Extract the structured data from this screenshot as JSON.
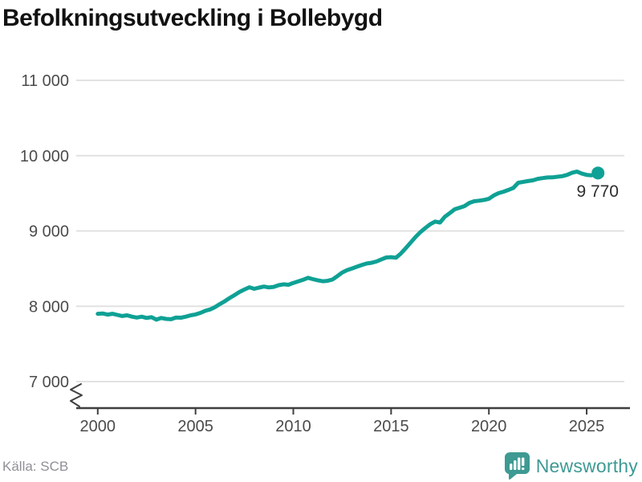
{
  "header": {
    "title": "Befolkningsutveckling i Bollebygd"
  },
  "chart_data": {
    "type": "line",
    "title": "Befolkningsutveckling i Bollebygd",
    "xlabel": "",
    "ylabel": "",
    "ylim": [
      7000,
      11000
    ],
    "xlim": [
      1998.9,
      2027.2
    ],
    "grid": "horizontal",
    "legend": "none",
    "axis_break_bottom_left": true,
    "line_color": "#0FA195",
    "grid_color": "#E2E2E2",
    "axis_color": "#3F3F3F",
    "tick_label_color": "#4B4B4B",
    "yticks": [
      {
        "value": 7000,
        "label": "7 000"
      },
      {
        "value": 8000,
        "label": "8 000"
      },
      {
        "value": 9000,
        "label": "9 000"
      },
      {
        "value": 10000,
        "label": "10 000"
      },
      {
        "value": 11000,
        "label": "11 000"
      }
    ],
    "xticks": [
      {
        "value": 2000,
        "label": "2000"
      },
      {
        "value": 2005,
        "label": "2005"
      },
      {
        "value": 2010,
        "label": "2010"
      },
      {
        "value": 2015,
        "label": "2015"
      },
      {
        "value": 2020,
        "label": "2020"
      },
      {
        "value": 2025,
        "label": "2025"
      }
    ],
    "end_label": "9 770",
    "end_point": [
      2025.58,
      9770
    ],
    "series": [
      {
        "name": "Befolkning i Bollebygd",
        "points": [
          [
            2000.0,
            7900
          ],
          [
            2000.25,
            7905
          ],
          [
            2000.5,
            7890
          ],
          [
            2000.75,
            7900
          ],
          [
            2001.0,
            7885
          ],
          [
            2001.25,
            7870
          ],
          [
            2001.5,
            7880
          ],
          [
            2001.75,
            7862
          ],
          [
            2002.0,
            7850
          ],
          [
            2002.25,
            7862
          ],
          [
            2002.5,
            7845
          ],
          [
            2002.75,
            7855
          ],
          [
            2003.0,
            7822
          ],
          [
            2003.25,
            7845
          ],
          [
            2003.5,
            7832
          ],
          [
            2003.75,
            7828
          ],
          [
            2004.0,
            7850
          ],
          [
            2004.25,
            7848
          ],
          [
            2004.5,
            7862
          ],
          [
            2004.75,
            7880
          ],
          [
            2005.0,
            7892
          ],
          [
            2005.25,
            7912
          ],
          [
            2005.5,
            7940
          ],
          [
            2005.75,
            7958
          ],
          [
            2006.0,
            7990
          ],
          [
            2006.25,
            8030
          ],
          [
            2006.5,
            8068
          ],
          [
            2006.75,
            8110
          ],
          [
            2007.0,
            8150
          ],
          [
            2007.25,
            8190
          ],
          [
            2007.5,
            8222
          ],
          [
            2007.75,
            8252
          ],
          [
            2008.0,
            8232
          ],
          [
            2008.25,
            8248
          ],
          [
            2008.5,
            8262
          ],
          [
            2008.75,
            8250
          ],
          [
            2009.0,
            8258
          ],
          [
            2009.25,
            8280
          ],
          [
            2009.5,
            8292
          ],
          [
            2009.75,
            8285
          ],
          [
            2010.0,
            8310
          ],
          [
            2010.25,
            8330
          ],
          [
            2010.5,
            8352
          ],
          [
            2010.75,
            8378
          ],
          [
            2011.0,
            8360
          ],
          [
            2011.25,
            8345
          ],
          [
            2011.5,
            8332
          ],
          [
            2011.75,
            8338
          ],
          [
            2012.0,
            8355
          ],
          [
            2012.25,
            8400
          ],
          [
            2012.5,
            8448
          ],
          [
            2012.75,
            8480
          ],
          [
            2013.0,
            8502
          ],
          [
            2013.25,
            8525
          ],
          [
            2013.5,
            8548
          ],
          [
            2013.75,
            8568
          ],
          [
            2014.0,
            8578
          ],
          [
            2014.25,
            8595
          ],
          [
            2014.5,
            8622
          ],
          [
            2014.75,
            8648
          ],
          [
            2015.0,
            8652
          ],
          [
            2015.25,
            8645
          ],
          [
            2015.5,
            8700
          ],
          [
            2015.75,
            8772
          ],
          [
            2016.0,
            8845
          ],
          [
            2016.25,
            8920
          ],
          [
            2016.5,
            8985
          ],
          [
            2016.75,
            9040
          ],
          [
            2017.0,
            9090
          ],
          [
            2017.25,
            9125
          ],
          [
            2017.5,
            9112
          ],
          [
            2017.75,
            9190
          ],
          [
            2018.0,
            9238
          ],
          [
            2018.25,
            9288
          ],
          [
            2018.5,
            9308
          ],
          [
            2018.75,
            9330
          ],
          [
            2019.0,
            9372
          ],
          [
            2019.25,
            9395
          ],
          [
            2019.5,
            9402
          ],
          [
            2019.75,
            9412
          ],
          [
            2020.0,
            9428
          ],
          [
            2020.25,
            9472
          ],
          [
            2020.5,
            9502
          ],
          [
            2020.75,
            9522
          ],
          [
            2021.0,
            9545
          ],
          [
            2021.25,
            9572
          ],
          [
            2021.5,
            9640
          ],
          [
            2021.75,
            9652
          ],
          [
            2022.0,
            9662
          ],
          [
            2022.25,
            9672
          ],
          [
            2022.5,
            9692
          ],
          [
            2022.75,
            9702
          ],
          [
            2023.0,
            9710
          ],
          [
            2023.25,
            9712
          ],
          [
            2023.5,
            9720
          ],
          [
            2023.75,
            9728
          ],
          [
            2024.0,
            9745
          ],
          [
            2024.25,
            9772
          ],
          [
            2024.5,
            9788
          ],
          [
            2024.75,
            9762
          ],
          [
            2025.0,
            9745
          ],
          [
            2025.25,
            9738
          ],
          [
            2025.58,
            9770
          ]
        ]
      }
    ]
  },
  "footer": {
    "source": "Källa: SCB",
    "brand": "Newsworthy",
    "brand_color": "#3E9A93"
  }
}
